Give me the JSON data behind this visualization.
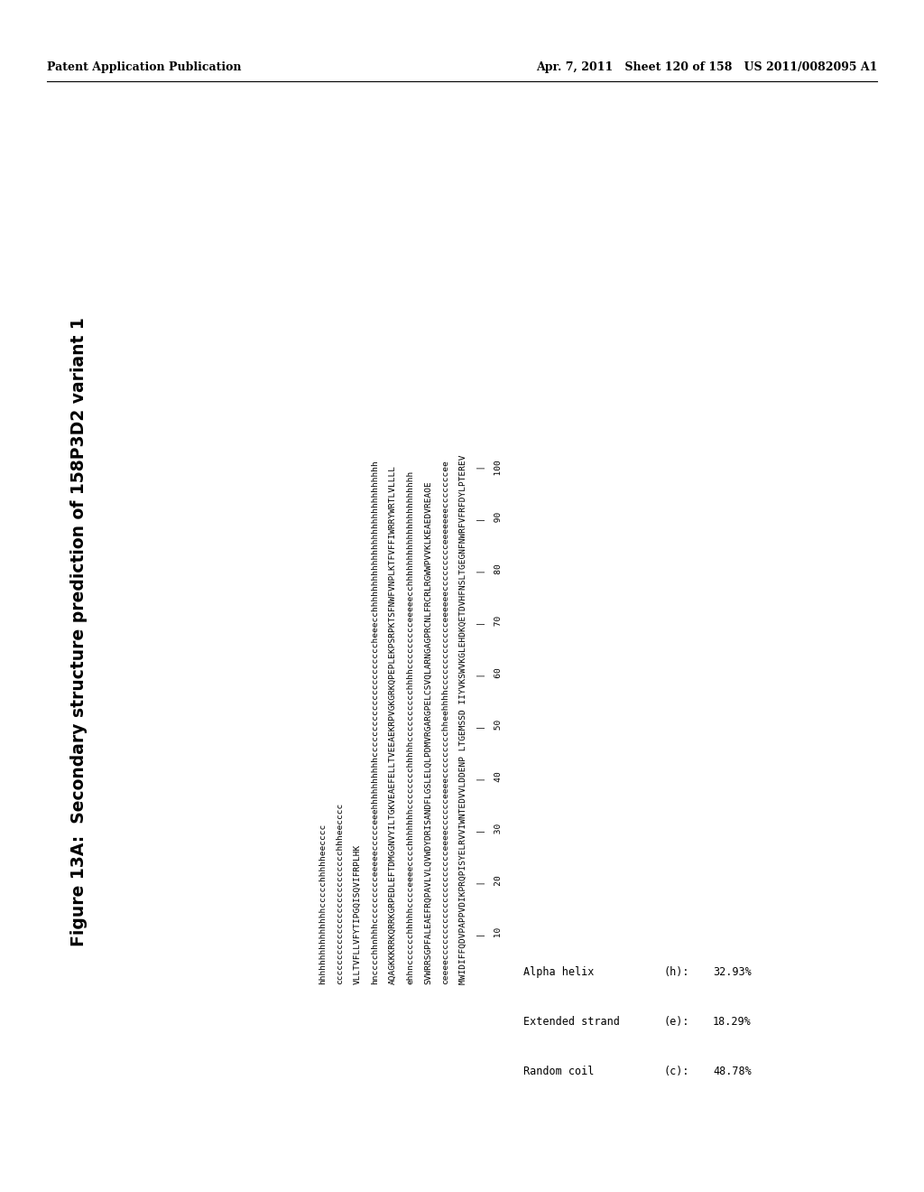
{
  "header_left": "Patent Application Publication",
  "header_right": "Apr. 7, 2011   Sheet 120 of 158   US 2011/0082095 A1",
  "figure_title": "Figure 13A:  Secondary structure prediction of 158P3D2 variant 1",
  "content_lines": [
    "         10        20        30        40        50        60        70        80        90       100",
    "         |         |         |         |         |         |         |         |         |         |",
    "MWIDIFFQDVPAPPVDIKPRQPISYELRVVIWNTEDVVLDDENP LTGEMSSD IIYVKSWVKGLEHDKQETDVHFNSLTGEGNFNWRFVFRFDYLPTEREV",
    "ceeeeccccccccccccccccccccceeeecccccceeeeccccccccchheehhhhccccccccccccceeeeeeccccccccceeeeeeecccccccee",
    "SVWRRSGPFALEAEFRQPAVLVLQVWDYDRISANDFLGSLELQLPDMVRGARGPELCSVQLARNGAGPRCNLFRCRLRGWWPVVKLKEAEDVREAOE",
    "ehhncccccchhhhhcccceeeecccchhhhhhhcccccccchhhhhcccccccccchhhhccccccccceeeeecchhhhhhhhhhhhhhhhhhhhhh",
    "AQAGKKKRRKQRRKGRPEDLEFTDMGGNVYILTGKVEAEFELLTVEEAEKRPVGKGRKQPEPLEKPSRPKTSFNWFVNPLKTFVFFIWRRYWRTLVLLLL",
    "hncccchhnhhhccccccccceeeeeccccceeehhhhhhhhhhccccccccccccccccccccccheeecchhhhhhhhhhhhhhhhhhhhhhhhhhhhh",
    "VLLTVFLLVFYTIPGQISQVIFRPLHK",
    "cccccccccccccccccccccccccchhheecccc",
    "hhhhhhhhhhhhhhhccccchhhhheecccc"
  ],
  "legend_lines": [
    "Alpha helix        (h): 32.93%",
    "Extended strand    (e): 18.29%",
    "Random coil        (c): 48.78%"
  ],
  "legend_col1": [
    "Alpha helix",
    "Extended strand",
    "Random coil"
  ],
  "legend_col2": [
    "(h):",
    "(e):",
    "(c):"
  ],
  "legend_col3": [
    "32.93%",
    "18.29%",
    "48.78%"
  ],
  "bg_color": "#ffffff",
  "text_color": "#000000"
}
